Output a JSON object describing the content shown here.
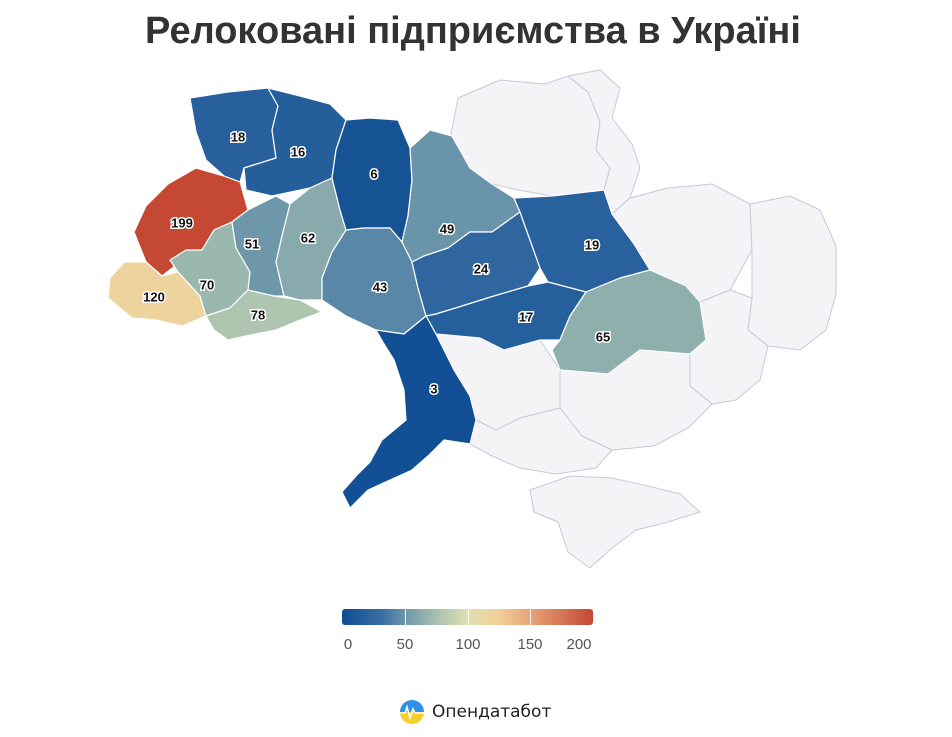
{
  "title": "Релоковані підприємства в Україні",
  "map_data": {
    "type": "choropleth",
    "metric": "Релоковані підприємства",
    "regions": [
      {
        "id": "volyn",
        "value": 18
      },
      {
        "id": "rivne",
        "value": 16
      },
      {
        "id": "lviv",
        "value": 199
      },
      {
        "id": "zakarpattia",
        "value": 120
      },
      {
        "id": "ivano-frankivsk",
        "value": 70
      },
      {
        "id": "chernivtsi",
        "value": 78
      },
      {
        "id": "ternopil",
        "value": 51
      },
      {
        "id": "khmelnytskyi",
        "value": 62
      },
      {
        "id": "zhytomyr",
        "value": 6
      },
      {
        "id": "vinnytsia",
        "value": 43
      },
      {
        "id": "kyiv",
        "value": 49
      },
      {
        "id": "cherkasy",
        "value": 24
      },
      {
        "id": "poltava",
        "value": 19
      },
      {
        "id": "kirovohrad",
        "value": 17
      },
      {
        "id": "dnipropetrovsk",
        "value": 65
      },
      {
        "id": "odesa",
        "value": 3
      }
    ],
    "no_data_regions": [
      "chernihiv",
      "sumy",
      "kharkiv",
      "luhansk",
      "donetsk",
      "zaporizhzhia",
      "mykolaiv",
      "kherson",
      "crimea"
    ],
    "colors": {
      "low": "#0e4c92",
      "mid": "#dfe0b0",
      "high": "#c44634",
      "no_data": "#f4f4f7"
    }
  },
  "legend": {
    "min": 0,
    "max": 200,
    "ticks": [
      "0",
      "50",
      "100",
      "150",
      "200"
    ]
  },
  "brand": {
    "name": "Опендатабот"
  }
}
